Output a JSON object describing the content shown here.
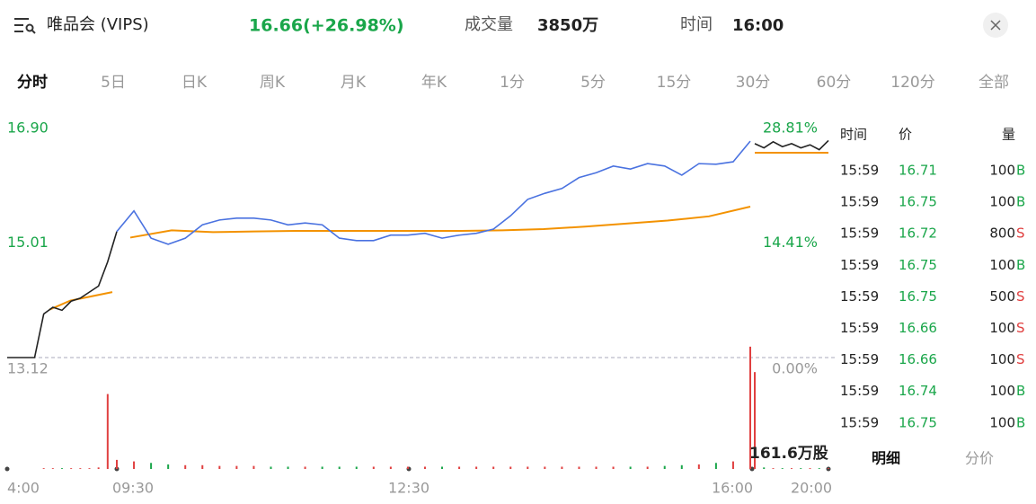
{
  "header": {
    "name": "唯品会 (VIPS)",
    "price": "16.66(+26.98%)",
    "volume_label": "成交量",
    "volume": "3850万",
    "time_label": "时间",
    "time": "16:00"
  },
  "tabs": [
    "分时",
    "5日",
    "日K",
    "周K",
    "月K",
    "年K",
    "1分",
    "5分",
    "15分",
    "30分",
    "60分",
    "120分",
    "全部"
  ],
  "chart": {
    "price_axis": [
      {
        "value": 16.9,
        "label": "16.90"
      },
      {
        "value": 15.01,
        "label": "15.01"
      },
      {
        "value": 13.12,
        "label": "13.12"
      }
    ],
    "pct_axis": [
      "28.81%",
      "14.41%",
      "0.00%"
    ],
    "time_axis": [
      "4:00",
      "09:30",
      "12:30",
      "16:00",
      "20:00"
    ],
    "volume_max": "161.6万股",
    "premarket": {
      "price": [
        13.12,
        13.12,
        13.12,
        13.12,
        13.84,
        13.95,
        13.9,
        14.05,
        14.1,
        14.2,
        14.3,
        14.7,
        15.2
      ],
      "avg": [
        13.91,
        14.06,
        14.13,
        14.2
      ],
      "volume": [
        0,
        0,
        0,
        0,
        1,
        1,
        1,
        1,
        1,
        1,
        2,
        99,
        8
      ]
    },
    "regular": {
      "price": [
        15.2,
        15.54,
        15.09,
        14.99,
        15.09,
        15.31,
        15.39,
        15.42,
        15.42,
        15.39,
        15.31,
        15.34,
        15.31,
        15.09,
        15.05,
        15.05,
        15.14,
        15.14,
        15.17,
        15.09,
        15.14,
        15.17,
        15.24,
        15.46,
        15.73,
        15.83,
        15.91,
        16.09,
        16.17,
        16.28,
        16.23,
        16.32,
        16.28,
        16.13,
        16.32,
        16.31,
        16.35,
        16.69
      ],
      "avg": [
        15.1,
        15.22,
        15.19,
        15.2,
        15.21,
        15.21,
        15.21,
        15.21,
        15.21,
        15.22,
        15.24,
        15.28,
        15.33,
        15.38,
        15.45,
        15.61
      ],
      "volume": [
        12,
        10,
        8,
        6,
        5,
        5,
        4,
        4,
        4,
        3,
        3,
        3,
        3,
        3,
        3,
        3,
        3,
        3,
        3,
        3,
        3,
        3,
        3,
        3,
        3,
        3,
        3,
        3,
        3,
        3,
        3,
        3,
        4,
        5,
        6,
        8,
        10,
        161.6
      ]
    },
    "afterhours": {
      "price": [
        16.65,
        16.58,
        16.68,
        16.6,
        16.65,
        16.58,
        16.63,
        16.55,
        16.7
      ],
      "avg": [
        16.5,
        16.5
      ],
      "volume": [
        128,
        2,
        1,
        1,
        1,
        1,
        1,
        1,
        1
      ]
    }
  },
  "trades": {
    "headers": [
      "时间",
      "价",
      "量"
    ],
    "rows": [
      {
        "time": "15:59",
        "price": "16.71",
        "qty": "100",
        "side": "B"
      },
      {
        "time": "15:59",
        "price": "16.75",
        "qty": "100",
        "side": "B"
      },
      {
        "time": "15:59",
        "price": "16.72",
        "qty": "800",
        "side": "S"
      },
      {
        "time": "15:59",
        "price": "16.75",
        "qty": "100",
        "side": "B"
      },
      {
        "time": "15:59",
        "price": "16.75",
        "qty": "500",
        "side": "S"
      },
      {
        "time": "15:59",
        "price": "16.66",
        "qty": "100",
        "side": "S"
      },
      {
        "time": "15:59",
        "price": "16.66",
        "qty": "100",
        "side": "S"
      },
      {
        "time": "15:59",
        "price": "16.74",
        "qty": "100",
        "side": "B"
      },
      {
        "time": "15:59",
        "price": "16.75",
        "qty": "100",
        "side": "B"
      }
    ]
  },
  "footer_tabs": [
    "明细",
    "分价"
  ]
}
